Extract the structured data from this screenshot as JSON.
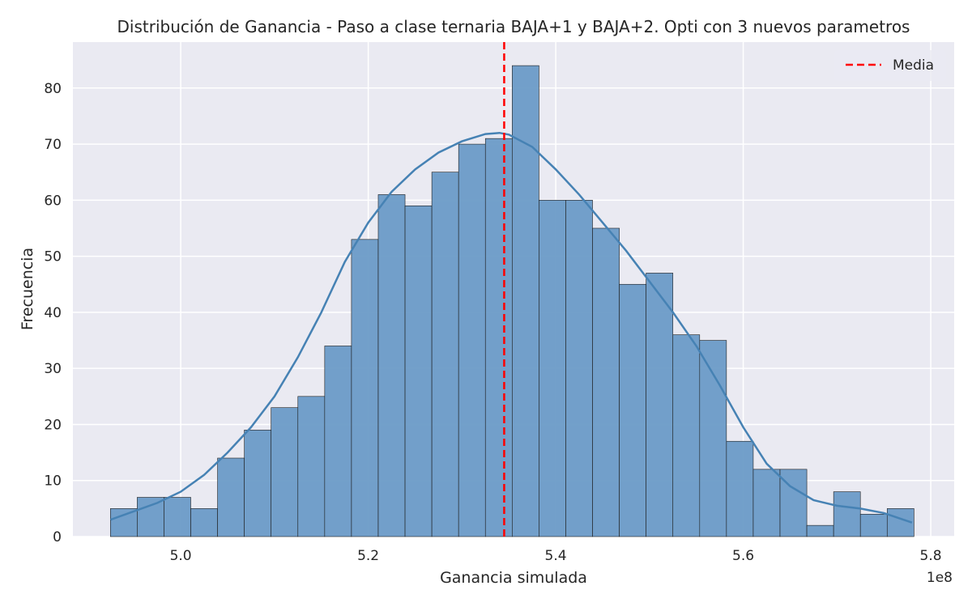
{
  "chart_data": {
    "type": "bar",
    "title": "Distribución de Ganancia - Paso a clase ternaria BAJA+1 y BAJA+2. Opti con 3 nuevos parametros",
    "xlabel": "Ganancia simulada",
    "ylabel": "Frecuencia",
    "x_offset_label": "1e8",
    "xlim": [
      4.885,
      5.825
    ],
    "ylim": [
      0,
      88.2
    ],
    "x_ticks": [
      5.0,
      5.2,
      5.4,
      5.6,
      5.8
    ],
    "x_tick_labels": [
      "5.0",
      "5.2",
      "5.4",
      "5.6",
      "5.8"
    ],
    "y_ticks": [
      0,
      10,
      20,
      30,
      40,
      50,
      60,
      70,
      80
    ],
    "y_tick_labels": [
      "0",
      "10",
      "20",
      "30",
      "40",
      "50",
      "60",
      "70",
      "80"
    ],
    "bin_start": 4.925,
    "bin_width": 0.02857,
    "counts": [
      5,
      7,
      7,
      5,
      14,
      19,
      23,
      25,
      34,
      53,
      61,
      59,
      65,
      70,
      71,
      84,
      60,
      60,
      55,
      45,
      47,
      36,
      35,
      17,
      12,
      12,
      2,
      8,
      4,
      5
    ],
    "kde": {
      "x": [
        4.925,
        4.95,
        4.975,
        5.0,
        5.025,
        5.05,
        5.075,
        5.1,
        5.125,
        5.15,
        5.175,
        5.2,
        5.225,
        5.25,
        5.275,
        5.3,
        5.325,
        5.34,
        5.35,
        5.375,
        5.4,
        5.425,
        5.45,
        5.475,
        5.5,
        5.525,
        5.55,
        5.575,
        5.6,
        5.625,
        5.65,
        5.675,
        5.7,
        5.725,
        5.75,
        5.78
      ],
      "y": [
        3,
        4.5,
        6,
        8,
        11,
        15,
        19.5,
        25,
        32,
        40,
        49,
        56,
        61.5,
        65.5,
        68.5,
        70.5,
        71.8,
        72,
        71.7,
        69.5,
        65.5,
        61,
        56,
        51,
        45.5,
        40,
        34,
        27,
        19.5,
        13,
        9,
        6.5,
        5.5,
        5,
        4.2,
        2.5
      ]
    },
    "mean": 5.345,
    "legend": {
      "entries": [
        "Media"
      ],
      "position": "top-right"
    },
    "grid": true,
    "colors": {
      "bar_fill": "#6c9bc7",
      "bar_edge": "#1d1d1d",
      "kde_line": "#4682b4",
      "mean_line": "#ff0000",
      "axes_bg": "#eaeaf2",
      "grid": "#ffffff"
    }
  }
}
